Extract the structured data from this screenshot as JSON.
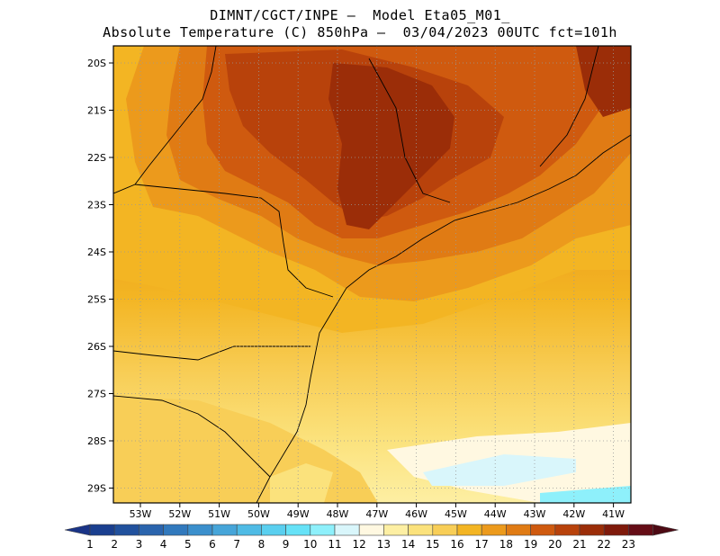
{
  "title": {
    "line1": "DIMNT/CGCT/INPE –  Model Eta05_M01_",
    "line2": "Absolute Temperature (C) 850hPa –  03/04/2023 00UTC fct=101h"
  },
  "map": {
    "lat_labels": [
      "20S",
      "21S",
      "22S",
      "23S",
      "24S",
      "25S",
      "26S",
      "27S",
      "28S",
      "29S"
    ],
    "lon_labels": [
      "53W",
      "52W",
      "51W",
      "50W",
      "49W",
      "48W",
      "47W",
      "46W",
      "45W",
      "44W",
      "43W",
      "42W",
      "41W"
    ]
  },
  "colorbar": {
    "labels": [
      "1",
      "2",
      "3",
      "4",
      "5",
      "6",
      "7",
      "8",
      "9",
      "10",
      "11",
      "12",
      "13",
      "14",
      "15",
      "16",
      "17",
      "18",
      "19",
      "20",
      "21",
      "22",
      "23"
    ],
    "colors": [
      "#1a3f8f",
      "#21519d",
      "#2a64ad",
      "#3179bd",
      "#3b8fcc",
      "#46a5d9",
      "#4fbbe5",
      "#5acfef",
      "#66e2f7",
      "#8ef0fb",
      "#d9f6fb",
      "#fff8e1",
      "#fdefa3",
      "#fbe27c",
      "#f8ce57",
      "#f3b523",
      "#ec9a1c",
      "#e07b14",
      "#cf5a0f",
      "#b8420b",
      "#9b2d08",
      "#7f1a0b",
      "#650d16"
    ],
    "left_arrow_color": "#1a3487",
    "right_arrow_color": "#4d0a14"
  }
}
